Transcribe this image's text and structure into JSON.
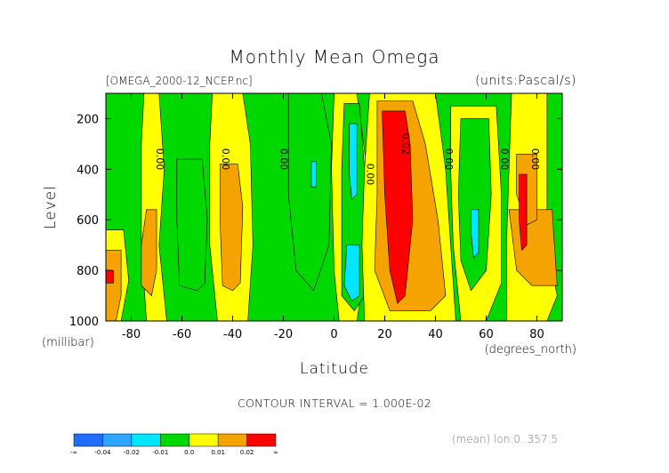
{
  "chart_data": {
    "type": "heatmap",
    "title": "Monthly Mean Omega",
    "file_label": "[OMEGA_2000-12_NCEP.nc]",
    "units_label": "(units:Pascal/s)",
    "ylabel": "Level",
    "ylabel_units": "(millibar)",
    "xlabel": "Latitude",
    "xlabel_units": "(degrees_north)",
    "xlim": [
      -90,
      90
    ],
    "ylim": [
      1000,
      100
    ],
    "x_ticks": [
      -80,
      -60,
      -40,
      -20,
      0,
      20,
      40,
      60,
      80
    ],
    "y_ticks": [
      200,
      400,
      600,
      800,
      1000
    ],
    "contour_interval_text": "CONTOUR INTERVAL = 1.000E-02",
    "footer_text": "(mean) lon:0..357.5",
    "colorbar": {
      "colors": [
        "#1f6cff",
        "#2ea3ff",
        "#00e6ff",
        "#00d800",
        "#ffff00",
        "#f5a300",
        "#ff0000"
      ],
      "labels": [
        "-∞",
        "-0.04",
        "-0.02",
        "-0.01",
        "0.0",
        "0.01",
        "0.02",
        "∞"
      ]
    },
    "contour_labels": [
      {
        "text": "0.00",
        "lat": -70,
        "level": 360
      },
      {
        "text": "0.00",
        "lat": -44,
        "level": 360
      },
      {
        "text": "0.00",
        "lat": -21,
        "level": 360
      },
      {
        "text": "0.00",
        "lat": 13,
        "level": 420
      },
      {
        "text": "0.02",
        "lat": 27,
        "level": 300
      },
      {
        "text": "0.00",
        "lat": 44,
        "level": 360
      },
      {
        "text": "0.00",
        "lat": 66,
        "level": 360
      },
      {
        "text": "0.00",
        "lat": 78,
        "level": 360
      }
    ],
    "bands": [
      {
        "value": 0.005,
        "points": [
          [
            -75,
            100
          ],
          [
            -69,
            100
          ],
          [
            -67,
            400
          ],
          [
            -69,
            700
          ],
          [
            -66,
            1000
          ],
          [
            -74,
            1000
          ],
          [
            -76,
            700
          ],
          [
            -76,
            300
          ]
        ]
      },
      {
        "value": 0.015,
        "points": [
          [
            -74,
            560
          ],
          [
            -70,
            560
          ],
          [
            -70,
            800
          ],
          [
            -72,
            900
          ],
          [
            -76,
            860
          ],
          [
            -76,
            700
          ]
        ]
      },
      {
        "value": 0.005,
        "points": [
          [
            -48,
            100
          ],
          [
            -36,
            100
          ],
          [
            -33,
            300
          ],
          [
            -32,
            700
          ],
          [
            -34,
            1000
          ],
          [
            -46,
            1000
          ],
          [
            -49,
            700
          ],
          [
            -49,
            300
          ]
        ]
      },
      {
        "value": 0.015,
        "points": [
          [
            -45,
            380
          ],
          [
            -38,
            380
          ],
          [
            -36,
            550
          ],
          [
            -37,
            850
          ],
          [
            -40,
            880
          ],
          [
            -44,
            860
          ],
          [
            -45,
            600
          ]
        ]
      },
      {
        "value": -0.005,
        "points": [
          [
            -62,
            360
          ],
          [
            -52,
            360
          ],
          [
            -50,
            600
          ],
          [
            -51,
            850
          ],
          [
            -54,
            880
          ],
          [
            -61,
            860
          ],
          [
            -62,
            600
          ]
        ]
      },
      {
        "value": -0.005,
        "points": [
          [
            -18,
            100
          ],
          [
            -5,
            100
          ],
          [
            -1,
            300
          ],
          [
            -2,
            700
          ],
          [
            -8,
            880
          ],
          [
            -15,
            800
          ],
          [
            -18,
            500
          ]
        ]
      },
      {
        "value": -0.015,
        "points": [
          [
            -9,
            370
          ],
          [
            -7,
            370
          ],
          [
            -7,
            470
          ],
          [
            -9,
            470
          ]
        ]
      },
      {
        "value": 0.005,
        "points": [
          [
            0,
            100
          ],
          [
            9,
            100
          ],
          [
            13,
            400
          ],
          [
            12,
            800
          ],
          [
            9,
            1000
          ],
          [
            2,
            1000
          ],
          [
            0,
            800
          ],
          [
            -1,
            400
          ]
        ]
      },
      {
        "value": -0.005,
        "points": [
          [
            4,
            140
          ],
          [
            10,
            140
          ],
          [
            12,
            400
          ],
          [
            12,
            900
          ],
          [
            8,
            960
          ],
          [
            3,
            900
          ],
          [
            3,
            400
          ]
        ]
      },
      {
        "value": -0.015,
        "points": [
          [
            6,
            220
          ],
          [
            9,
            220
          ],
          [
            9,
            500
          ],
          [
            7,
            520
          ],
          [
            6,
            420
          ]
        ]
      },
      {
        "value": -0.015,
        "points": [
          [
            5,
            700
          ],
          [
            10,
            700
          ],
          [
            10,
            900
          ],
          [
            7,
            920
          ],
          [
            4,
            860
          ]
        ]
      },
      {
        "value": 0.005,
        "points": [
          [
            14,
            100
          ],
          [
            40,
            100
          ],
          [
            44,
            400
          ],
          [
            46,
            700
          ],
          [
            48,
            1000
          ],
          [
            12,
            1000
          ],
          [
            11,
            700
          ],
          [
            12,
            400
          ]
        ]
      },
      {
        "value": 0.015,
        "points": [
          [
            17,
            130
          ],
          [
            31,
            130
          ],
          [
            36,
            300
          ],
          [
            41,
            600
          ],
          [
            44,
            900
          ],
          [
            38,
            960
          ],
          [
            22,
            960
          ],
          [
            16,
            800
          ],
          [
            17,
            500
          ]
        ]
      },
      {
        "value": 0.025,
        "points": [
          [
            19,
            170
          ],
          [
            28,
            170
          ],
          [
            30,
            300
          ],
          [
            31,
            600
          ],
          [
            28,
            900
          ],
          [
            25,
            930
          ],
          [
            22,
            800
          ],
          [
            20,
            500
          ]
        ]
      },
      {
        "value": 0.005,
        "points": [
          [
            46,
            150
          ],
          [
            64,
            150
          ],
          [
            66,
            500
          ],
          [
            66,
            850
          ],
          [
            60,
            1000
          ],
          [
            50,
            1000
          ],
          [
            47,
            700
          ],
          [
            46,
            400
          ]
        ]
      },
      {
        "value": -0.005,
        "points": [
          [
            50,
            200
          ],
          [
            61,
            200
          ],
          [
            62,
            500
          ],
          [
            60,
            800
          ],
          [
            54,
            880
          ],
          [
            50,
            760
          ],
          [
            49,
            500
          ]
        ]
      },
      {
        "value": -0.015,
        "points": [
          [
            54,
            560
          ],
          [
            57,
            560
          ],
          [
            57,
            730
          ],
          [
            55,
            750
          ],
          [
            54,
            650
          ]
        ]
      },
      {
        "value": 0.005,
        "points": [
          [
            70,
            100
          ],
          [
            84,
            100
          ],
          [
            84,
            400
          ],
          [
            84,
            700
          ],
          [
            88,
            900
          ],
          [
            84,
            1000
          ],
          [
            68,
            1000
          ],
          [
            68,
            700
          ]
        ]
      },
      {
        "value": 0.015,
        "points": [
          [
            69,
            560
          ],
          [
            86,
            560
          ],
          [
            88,
            860
          ],
          [
            78,
            860
          ],
          [
            72,
            800
          ]
        ]
      },
      {
        "value": 0.015,
        "points": [
          [
            72,
            340
          ],
          [
            80,
            340
          ],
          [
            80,
            600
          ],
          [
            76,
            620
          ],
          [
            72,
            500
          ]
        ]
      },
      {
        "value": 0.025,
        "points": [
          [
            73,
            420
          ],
          [
            76,
            420
          ],
          [
            76,
            700
          ],
          [
            74,
            720
          ],
          [
            73,
            600
          ]
        ]
      },
      {
        "value": 0.005,
        "points": [
          [
            -90,
            640
          ],
          [
            -83,
            640
          ],
          [
            -81,
            840
          ],
          [
            -84,
            1000
          ],
          [
            -90,
            1000
          ]
        ]
      },
      {
        "value": 0.015,
        "points": [
          [
            -90,
            720
          ],
          [
            -84,
            720
          ],
          [
            -84,
            900
          ],
          [
            -86,
            1000
          ],
          [
            -90,
            1000
          ]
        ]
      },
      {
        "value": 0.025,
        "points": [
          [
            -90,
            800
          ],
          [
            -87,
            800
          ],
          [
            -87,
            850
          ],
          [
            -90,
            850
          ]
        ]
      }
    ]
  }
}
